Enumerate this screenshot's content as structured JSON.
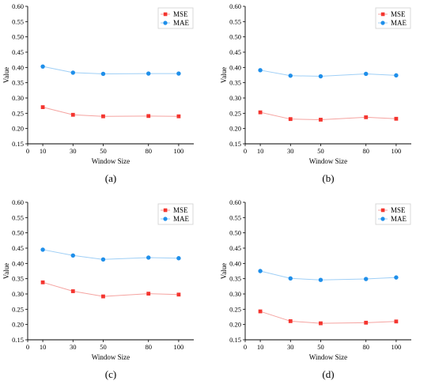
{
  "colors": {
    "mse": "#f4352f",
    "mae": "#1f8fea",
    "mse_line": "#f5a3a0",
    "mae_line": "#9fcff6"
  },
  "marker_shapes": {
    "mse": "square",
    "mae": "circle"
  },
  "chart_data": [
    {
      "type": "line",
      "panel_label": "(a)",
      "xlabel": "Window Size",
      "ylabel": "Value",
      "categories": [
        "10",
        "30",
        "50",
        "80",
        "100"
      ],
      "x": [
        10,
        30,
        50,
        80,
        100
      ],
      "xlim": [
        0,
        110
      ],
      "ylim": [
        0.15,
        0.6
      ],
      "xticks": [
        "0",
        "10",
        "30",
        "50",
        "80",
        "100"
      ],
      "yticks": [
        "0.15",
        "0.20",
        "0.25",
        "0.30",
        "0.35",
        "0.40",
        "0.45",
        "0.50",
        "0.55",
        "0.60"
      ],
      "legend_position": "top-right",
      "grid": false,
      "series": [
        {
          "name": "MSE",
          "values": [
            0.27,
            0.245,
            0.24,
            0.241,
            0.24
          ]
        },
        {
          "name": "MAE",
          "values": [
            0.403,
            0.383,
            0.379,
            0.38,
            0.38
          ]
        }
      ]
    },
    {
      "type": "line",
      "panel_label": "(b)",
      "xlabel": "Window Size",
      "ylabel": "Value",
      "categories": [
        "10",
        "30",
        "50",
        "80",
        "100"
      ],
      "x": [
        10,
        30,
        50,
        80,
        100
      ],
      "xlim": [
        0,
        110
      ],
      "ylim": [
        0.15,
        0.6
      ],
      "xticks": [
        "0",
        "10",
        "30",
        "50",
        "80",
        "100"
      ],
      "yticks": [
        "0.15",
        "0.20",
        "0.25",
        "0.30",
        "0.35",
        "0.40",
        "0.45",
        "0.50",
        "0.55",
        "0.60"
      ],
      "legend_position": "top-right",
      "grid": false,
      "series": [
        {
          "name": "MSE",
          "values": [
            0.253,
            0.231,
            0.229,
            0.237,
            0.232
          ]
        },
        {
          "name": "MAE",
          "values": [
            0.391,
            0.373,
            0.371,
            0.379,
            0.374
          ]
        }
      ]
    },
    {
      "type": "line",
      "panel_label": "(c)",
      "xlabel": "Window Size",
      "ylabel": "Value",
      "categories": [
        "10",
        "30",
        "50",
        "80",
        "100"
      ],
      "x": [
        10,
        30,
        50,
        80,
        100
      ],
      "xlim": [
        0,
        110
      ],
      "ylim": [
        0.15,
        0.6
      ],
      "xticks": [
        "0",
        "10",
        "30",
        "50",
        "80",
        "100"
      ],
      "yticks": [
        "0.15",
        "0.20",
        "0.25",
        "0.30",
        "0.35",
        "0.40",
        "0.45",
        "0.50",
        "0.55",
        "0.60"
      ],
      "legend_position": "top-right",
      "grid": false,
      "series": [
        {
          "name": "MSE",
          "values": [
            0.338,
            0.309,
            0.292,
            0.301,
            0.298
          ]
        },
        {
          "name": "MAE",
          "values": [
            0.445,
            0.426,
            0.413,
            0.419,
            0.417
          ]
        }
      ]
    },
    {
      "type": "line",
      "panel_label": "(d)",
      "xlabel": "Window Size",
      "ylabel": "Value",
      "categories": [
        "10",
        "30",
        "50",
        "80",
        "100"
      ],
      "x": [
        10,
        30,
        50,
        80,
        100
      ],
      "xlim": [
        0,
        110
      ],
      "ylim": [
        0.15,
        0.6
      ],
      "xticks": [
        "0",
        "10",
        "30",
        "50",
        "80",
        "100"
      ],
      "yticks": [
        "0.15",
        "0.20",
        "0.25",
        "0.30",
        "0.35",
        "0.40",
        "0.45",
        "0.50",
        "0.55",
        "0.60"
      ],
      "legend_position": "top-right",
      "grid": false,
      "series": [
        {
          "name": "MSE",
          "values": [
            0.243,
            0.211,
            0.204,
            0.206,
            0.21
          ]
        },
        {
          "name": "MAE",
          "values": [
            0.375,
            0.351,
            0.346,
            0.349,
            0.354
          ]
        }
      ]
    }
  ]
}
